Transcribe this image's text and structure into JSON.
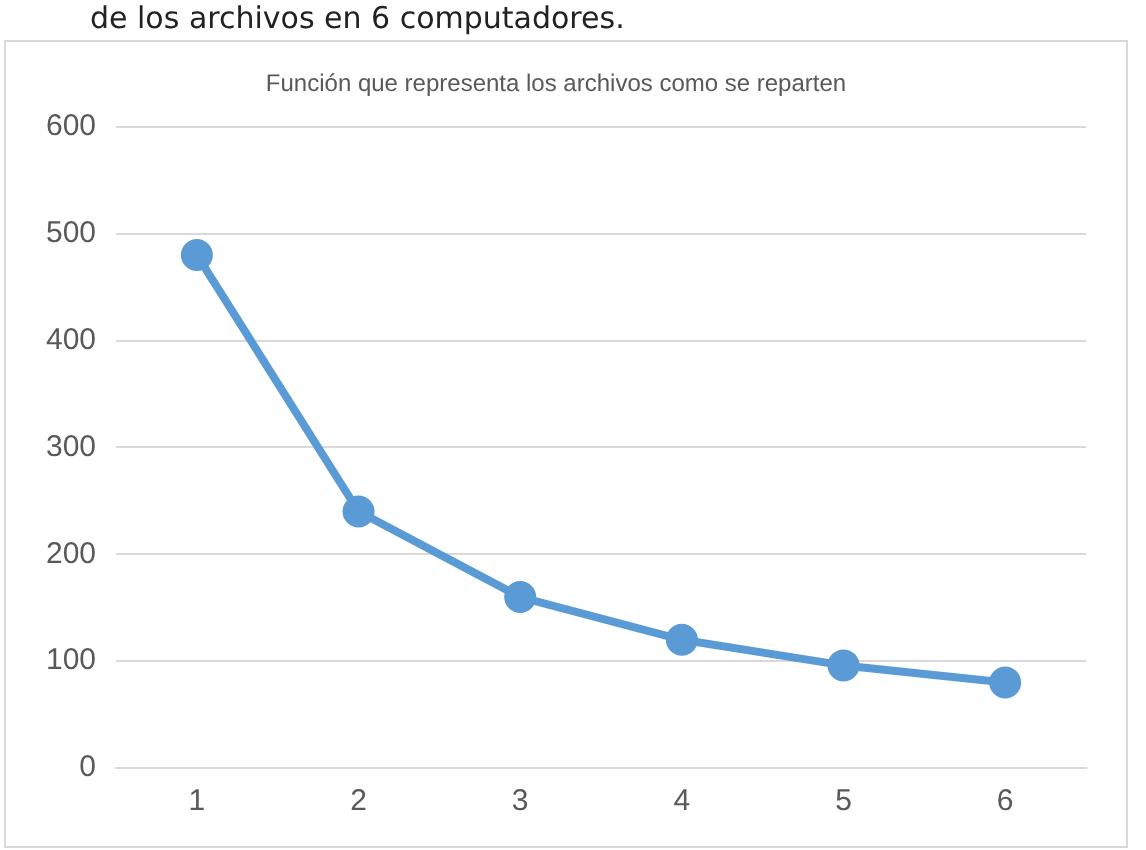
{
  "chart_data": {
    "type": "line",
    "title": "Función que representa los archivos como se reparten",
    "annotations": [
      "de los archivos en 6 computadores."
    ],
    "categories": [
      "1",
      "2",
      "3",
      "4",
      "5",
      "6"
    ],
    "series": [
      {
        "color": "#5b9bd5",
        "values": [
          480,
          240,
          160,
          120,
          96,
          80
        ]
      }
    ],
    "ylim": [
      0,
      600
    ],
    "yticks": [
      0,
      100,
      200,
      300,
      400,
      500,
      600
    ],
    "grid": "y",
    "legend": false,
    "marker": "circle",
    "line_style": "solid"
  }
}
